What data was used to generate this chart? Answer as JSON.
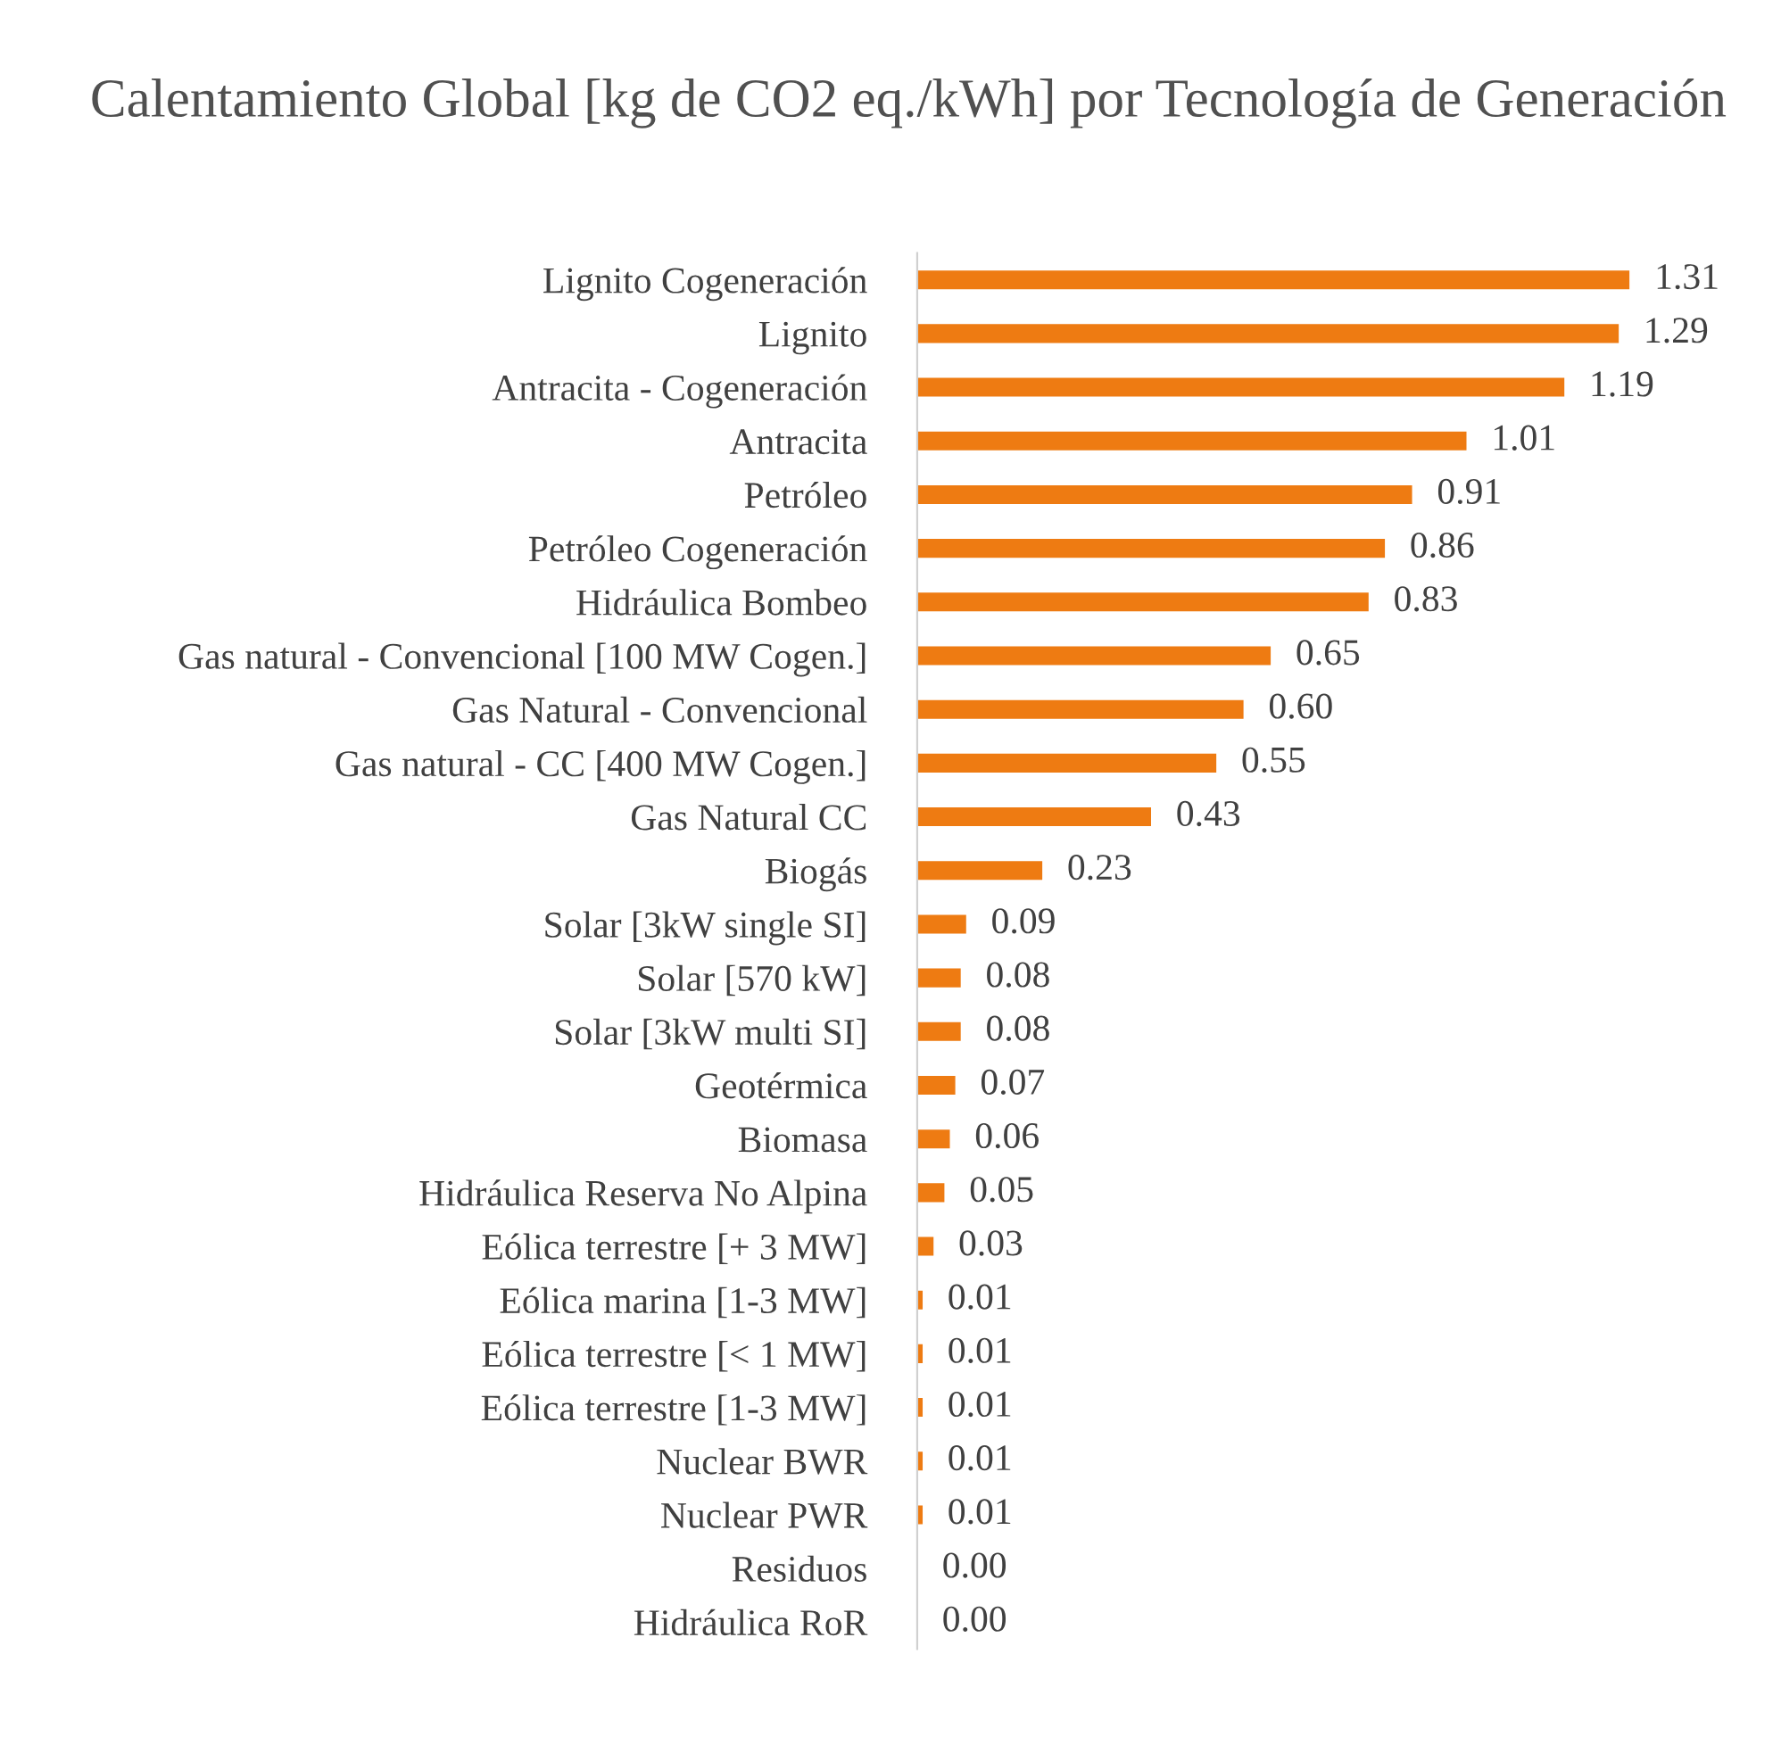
{
  "chart_data": {
    "type": "bar",
    "orientation": "horizontal",
    "title": "Calentamiento Global [kg de CO2 eq./kWh] por Tecnología de Generación",
    "categories": [
      "Lignito Cogeneración",
      "Lignito",
      "Antracita - Cogeneración",
      "Antracita",
      "Petróleo",
      "Petróleo Cogeneración",
      "Hidráulica Bombeo",
      "Gas natural - Convencional [100 MW Cogen.]",
      "Gas Natural - Convencional",
      "Gas natural - CC [400 MW Cogen.]",
      "Gas Natural CC",
      "Biogás",
      "Solar [3kW single SI]",
      "Solar [570 kW]",
      "Solar [3kW multi SI]",
      "Geotérmica",
      "Biomasa",
      "Hidráulica Reserva No Alpina",
      "Eólica terrestre [+ 3 MW]",
      "Eólica marina [1-3 MW]",
      "Eólica terrestre [< 1 MW]",
      "Eólica terrestre [1-3 MW]",
      "Nuclear BWR",
      "Nuclear PWR",
      "Residuos",
      "Hidráulica RoR"
    ],
    "values": [
      1.31,
      1.29,
      1.19,
      1.01,
      0.91,
      0.86,
      0.83,
      0.65,
      0.6,
      0.55,
      0.43,
      0.23,
      0.09,
      0.08,
      0.08,
      0.07,
      0.06,
      0.05,
      0.03,
      0.01,
      0.01,
      0.01,
      0.01,
      0.01,
      0.0,
      0.0
    ],
    "value_labels": [
      "1.31",
      "1.29",
      "1.19",
      "1.01",
      "0.91",
      "0.86",
      "0.83",
      "0.65",
      "0.60",
      "0.55",
      "0.43",
      "0.23",
      "0.09",
      "0.08",
      "0.08",
      "0.07",
      "0.06",
      "0.05",
      "0.03",
      "0.01",
      "0.01",
      "0.01",
      "0.01",
      "0.01",
      "0.00",
      "0.00"
    ],
    "color": "#ee7b12",
    "grid": false,
    "legend": false
  }
}
